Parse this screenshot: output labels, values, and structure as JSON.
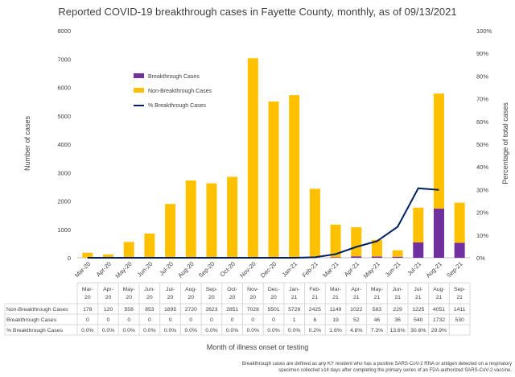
{
  "chart_data": {
    "type": "bar",
    "title": "Reported COVID-19 breakthrough cases in Fayette County, monthly, as of 09/13/2021",
    "xlabel": "Month of illness onset or testing",
    "ylabel": "Number of cases",
    "y2label": "Percentage of total cases",
    "ylim": [
      0,
      8000
    ],
    "y2lim": [
      0,
      100
    ],
    "yticks": [
      "0",
      "1000",
      "2000",
      "3000",
      "4000",
      "5000",
      "6000",
      "7000",
      "8000"
    ],
    "y2ticks": [
      "0%",
      "10%",
      "20%",
      "30%",
      "40%",
      "50%",
      "60%",
      "70%",
      "80%",
      "90%",
      "100%"
    ],
    "categories": [
      "Mar-20",
      "Apr-20",
      "May-20",
      "Jun-20",
      "Jul-20",
      "Aug-20",
      "Sep-20",
      "Oct-20",
      "Nov-20",
      "Dec-20",
      "Jan-21",
      "Feb-21",
      "Mar-21",
      "Apr-21",
      "May-21",
      "Jun-21",
      "Jul-21",
      "Aug-21",
      "Sep-21"
    ],
    "table_categories": [
      "Mar-20",
      "Apr-20",
      "May-20",
      "Jun-20",
      "Jul-20",
      "Aug-20",
      "Sep-20",
      "Oct-20",
      "Nov-20",
      "Dec-20",
      "Jan-21",
      "Feb-21",
      "Mar-21",
      "Apr-21",
      "May-21",
      "Jun-21",
      "Jul-21",
      "Aug-21",
      "Sep-21"
    ],
    "series": [
      {
        "name": "Breakthrough Cases",
        "kind": "stacked-bar",
        "color": "#7030a0",
        "values": [
          0,
          0,
          0,
          0,
          0,
          0,
          0,
          0,
          0,
          0,
          1,
          6,
          19,
          52,
          46,
          36,
          540,
          1732,
          530
        ],
        "table_values": [
          "0",
          "0",
          "0",
          "0",
          "0",
          "0",
          "0",
          "0",
          "0",
          "0",
          "1",
          "6",
          "19",
          "52",
          "46",
          "36",
          "540",
          "1732",
          "530"
        ]
      },
      {
        "name": "Non-Breakthrough Cases",
        "kind": "stacked-bar",
        "color": "#ffc000",
        "values": [
          178,
          120,
          558,
          853,
          1895,
          2720,
          2623,
          2851,
          7028,
          5501,
          5726,
          2425,
          1149,
          1022,
          583,
          229,
          1225,
          4051,
          1411
        ],
        "table_values": [
          "178",
          "120",
          "558",
          "853",
          "1895",
          "2720",
          "2623",
          "2851",
          "7028",
          "5501",
          "5726",
          "2425",
          "1149",
          "1022",
          "583",
          "229",
          "1225",
          "4051",
          "1411"
        ]
      },
      {
        "name": "% Breakthrough Cases",
        "kind": "line",
        "axis": "right",
        "color": "#002060",
        "values": [
          0,
          0,
          0,
          0,
          0,
          0,
          0,
          0,
          0,
          0,
          0,
          0.2,
          1.6,
          4.8,
          7.3,
          13.6,
          30.6,
          29.9,
          null
        ],
        "table_values": [
          "0.0%",
          "0.0%",
          "0.0%",
          "0.0%",
          "0.0%",
          "0.0%",
          "0.0%",
          "0.0%",
          "0.0%",
          "0.0%",
          "0.0%",
          "0.2%",
          "1.6%",
          "4.8%",
          "7.3%",
          "13.6%",
          "30.6%",
          "29.9%",
          ""
        ]
      }
    ],
    "table_rows_order": [
      "Non-Breakthrough Cases",
      "Breakthrough Cases",
      "% Breakthrough Cases"
    ],
    "legend_position": "upper-left",
    "grid": false,
    "footnote": [
      "Breakthrough cases are defined as any KY resident who has a positive SARS-CoV-2 RNA or antigen detected on a respiratory",
      "specimen collected ≥14 days after completing the primary series of an FDA-authorized SARS-CoV-2 vaccine."
    ]
  }
}
